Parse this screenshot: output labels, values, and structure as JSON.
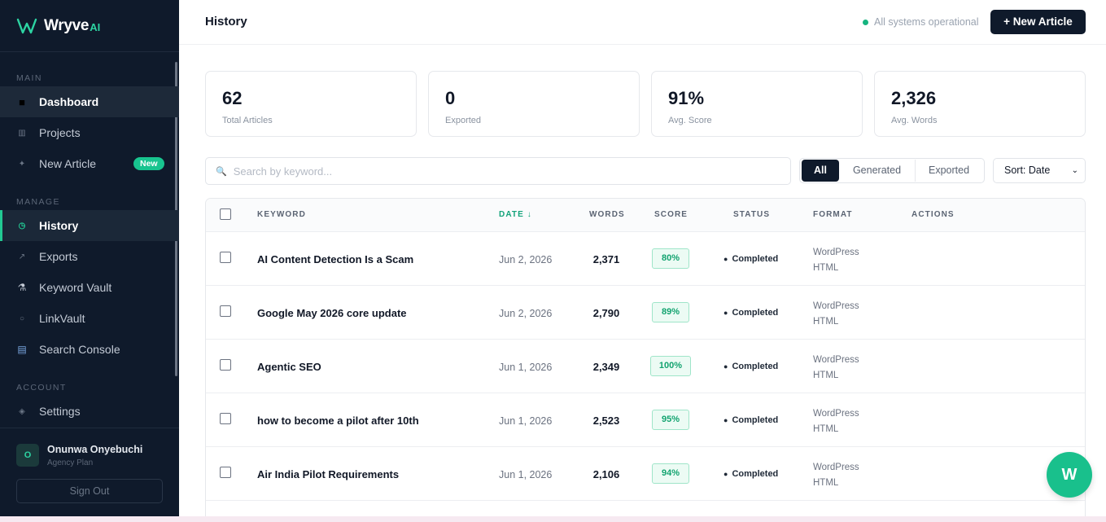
{
  "brand": {
    "name": "Wryve",
    "suffix": "AI"
  },
  "sidebar": {
    "sections": {
      "main": "MAIN",
      "manage": "MANAGE",
      "account": "ACCOUNT"
    },
    "items": [
      {
        "label": "Dashboard",
        "icon": "square-icon"
      },
      {
        "label": "Projects",
        "icon": "grid-icon"
      },
      {
        "label": "New Article",
        "icon": "sparkle-icon",
        "badge": "New"
      },
      {
        "label": "History",
        "icon": "clock-icon"
      },
      {
        "label": "Exports",
        "icon": "arrow-icon"
      },
      {
        "label": "Keyword Vault",
        "icon": "microscope-icon"
      },
      {
        "label": "LinkVault",
        "icon": "link-icon"
      },
      {
        "label": "Search Console",
        "icon": "chart-icon"
      },
      {
        "label": "Settings",
        "icon": "gear-icon"
      }
    ],
    "user": {
      "initial": "O",
      "name": "Onunwa Onyebuchi",
      "plan": "Agency Plan"
    },
    "sign_out": "Sign Out"
  },
  "header": {
    "title": "History",
    "status": "All systems operational",
    "new_article": "+ New Article"
  },
  "stats": [
    {
      "value": "62",
      "label": "Total Articles"
    },
    {
      "value": "0",
      "label": "Exported"
    },
    {
      "value": "91%",
      "label": "Avg. Score"
    },
    {
      "value": "2,326",
      "label": "Avg. Words"
    }
  ],
  "search": {
    "placeholder": "Search by keyword..."
  },
  "filters": {
    "all": "All",
    "generated": "Generated",
    "exported": "Exported"
  },
  "sort": {
    "label": "Sort: Date"
  },
  "table": {
    "headers": {
      "keyword": "KEYWORD",
      "date": "DATE ↓",
      "words": "WORDS",
      "score": "SCORE",
      "status": "STATUS",
      "format": "FORMAT",
      "actions": "ACTIONS"
    },
    "rows": [
      {
        "keyword": "AI Content Detection Is a Scam",
        "date": "Jun 2, 2026",
        "words": "2,371",
        "score": "80%",
        "status": "Completed",
        "format1": "WordPress",
        "format2": "HTML"
      },
      {
        "keyword": "Google May 2026 core update",
        "date": "Jun 2, 2026",
        "words": "2,790",
        "score": "89%",
        "status": "Completed",
        "format1": "WordPress",
        "format2": "HTML"
      },
      {
        "keyword": "Agentic SEO",
        "date": "Jun 1, 2026",
        "words": "2,349",
        "score": "100%",
        "status": "Completed",
        "format1": "WordPress",
        "format2": "HTML"
      },
      {
        "keyword": "how to become a pilot after 10th",
        "date": "Jun 1, 2026",
        "words": "2,523",
        "score": "95%",
        "status": "Completed",
        "format1": "WordPress",
        "format2": "HTML"
      },
      {
        "keyword": "Air India Pilot Requirements",
        "date": "Jun 1, 2026",
        "words": "2,106",
        "score": "94%",
        "status": "Completed",
        "format1": "WordPress",
        "format2": "HTML"
      }
    ]
  },
  "fab": {
    "label": "W"
  },
  "colors": {
    "sidebar_bg": "#0f1a2b",
    "accent": "#19c08c",
    "score_text": "#12a36f"
  }
}
